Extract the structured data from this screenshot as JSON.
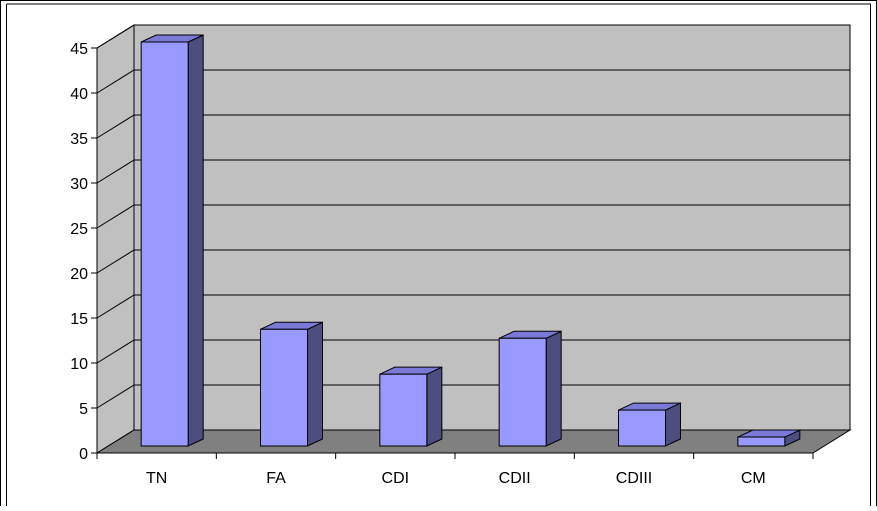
{
  "chart_data": {
    "type": "bar",
    "style": "3d-column",
    "categories": [
      "TN",
      "FA",
      "CDI",
      "CDII",
      "CDIII",
      "CM"
    ],
    "values": [
      45,
      13,
      8,
      12,
      4,
      1
    ],
    "title": "",
    "xlabel": "",
    "ylabel": "",
    "ylim": [
      0,
      45
    ],
    "yticks": [
      "0",
      "5",
      "10",
      "15",
      "20",
      "25",
      "30",
      "35",
      "40",
      "45"
    ],
    "grid": true,
    "legend": "none"
  },
  "colors": {
    "bar_front": "#9999ff",
    "bar_top": "#7a7ad6",
    "bar_side": "#4d4d80",
    "wall": "#c0c0c0",
    "floor": "#808080",
    "gridline": "#000000"
  }
}
